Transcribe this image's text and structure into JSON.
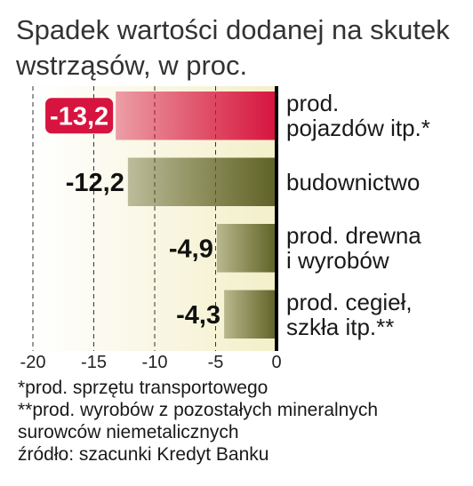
{
  "chart_data": {
    "type": "bar",
    "orientation": "horizontal",
    "title": "Spadek wartości dodanej na skutek\nwstrząsów, w proc.",
    "categories": [
      "prod.\npojazdów itp.*",
      "budownictwo",
      "prod. drewna\ni wyrobów",
      "prod. cegieł,\nszkła itp.**"
    ],
    "values": [
      -13.2,
      -12.2,
      -4.9,
      -4.3
    ],
    "value_labels": [
      "-13,2",
      "-12,2",
      "-4,9",
      "-4,3"
    ],
    "colors": [
      "#d7143f",
      "#5e6226",
      "#5e6226",
      "#5e6226"
    ],
    "highlight": 0,
    "xlim": [
      -20,
      0
    ],
    "xticks": [
      -20,
      -15,
      -10,
      -5,
      0
    ],
    "grid": true,
    "notes": [
      "*prod. sprzętu transportowego",
      "**prod. wyrobów z pozostałych mineralnych\nsurowców niemetalicznych",
      "źródło: szacunki Kredyt Banku"
    ]
  }
}
